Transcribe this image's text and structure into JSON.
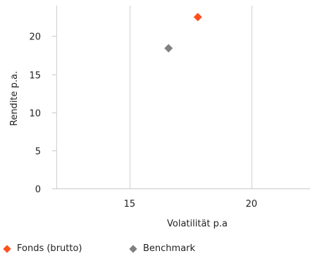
{
  "chart_data": {
    "type": "scatter",
    "title": "",
    "xlabel": "Volatilität p.a",
    "ylabel": "Rendite p.a.",
    "xlim": [
      12,
      22.4
    ],
    "ylim": [
      0,
      24
    ],
    "xticks": [
      15,
      20
    ],
    "yticks": [
      0,
      5,
      10,
      15,
      20
    ],
    "grid": true,
    "legend_position": "bottom-left",
    "series": [
      {
        "name": "Fonds (brutto)",
        "color": "#ff4f1f",
        "marker": "diamond",
        "points": [
          [
            17.8,
            22.5
          ]
        ]
      },
      {
        "name": "Benchmark",
        "color": "#808080",
        "marker": "diamond",
        "points": [
          [
            16.6,
            18.4
          ]
        ]
      }
    ]
  }
}
